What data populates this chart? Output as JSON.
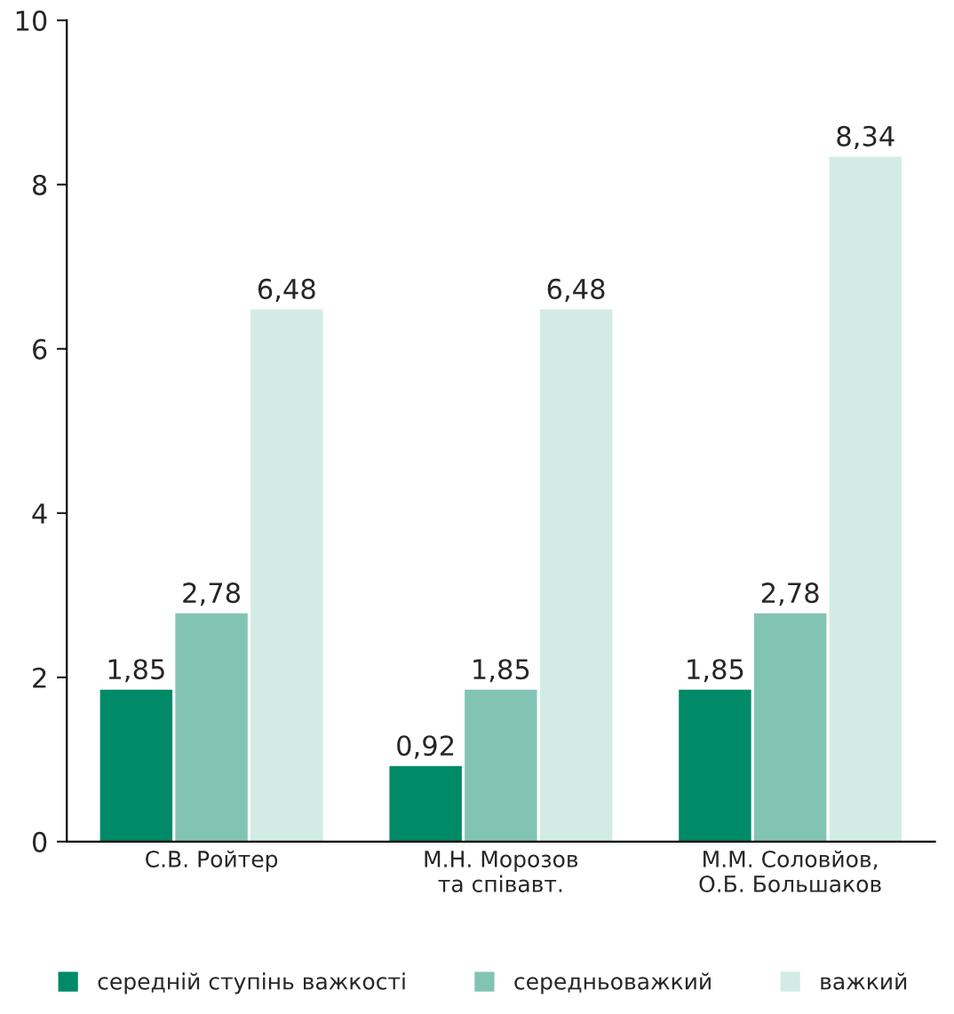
{
  "chart_data": {
    "type": "bar",
    "categories": [
      "С.В. Ройтер",
      "М.Н. Морозов\nта співавт.",
      "М.М. Соловйов,\nО.Б. Большаков"
    ],
    "series": [
      {
        "name": "середній ступінь важкості",
        "color": "#008a67",
        "values": [
          1.85,
          0.92,
          1.85
        ],
        "value_labels": [
          "1,85",
          "0,92",
          "1,85"
        ]
      },
      {
        "name": "середньоважкий",
        "color": "#82c4b4",
        "values": [
          2.78,
          1.85,
          2.78
        ],
        "value_labels": [
          "2,78",
          "1,85",
          "2,78"
        ]
      },
      {
        "name": "важкий",
        "color": "#d2ece5",
        "values": [
          6.48,
          6.48,
          8.34
        ],
        "value_labels": [
          "6,48",
          "6,48",
          "8,34"
        ]
      }
    ],
    "ylim": [
      0,
      10
    ],
    "yticks": [
      0,
      2,
      4,
      6,
      8,
      10
    ],
    "grid": false,
    "legend": "bottom",
    "marker": "square"
  }
}
